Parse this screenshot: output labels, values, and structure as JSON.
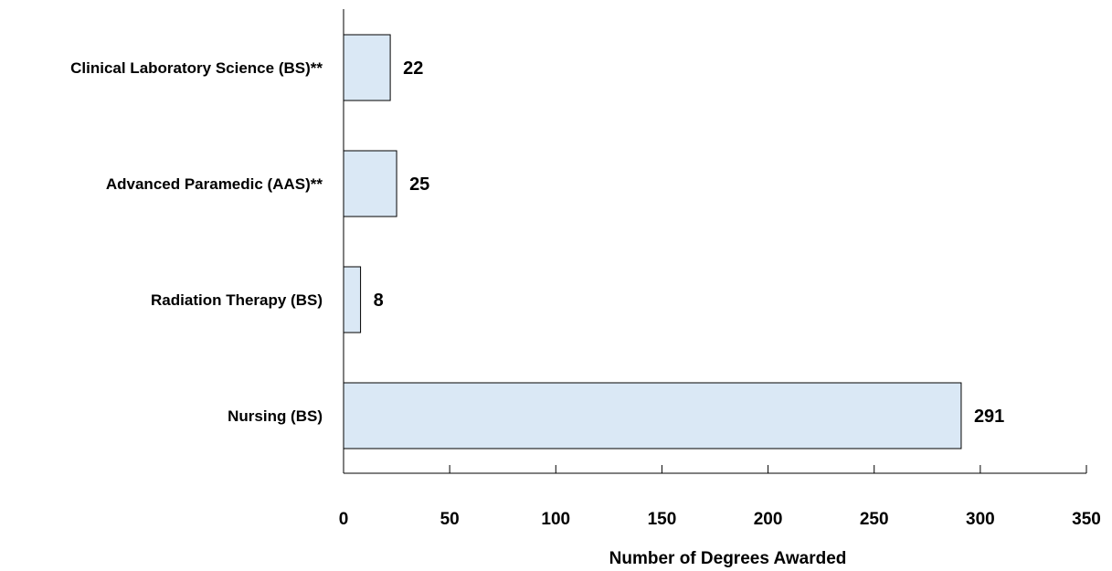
{
  "chart_data": {
    "type": "bar",
    "orientation": "horizontal",
    "categories": [
      "Clinical Laboratory Science (BS)**",
      "Advanced Paramedic (AAS)**",
      "Radiation Therapy (BS)",
      "Nursing (BS)"
    ],
    "values": [
      22,
      25,
      8,
      291
    ],
    "data_labels": [
      "22",
      "25",
      "8",
      "291"
    ],
    "xlabel": "Number of Degrees Awarded",
    "ylabel": "",
    "xlim": [
      0,
      350
    ],
    "xticks": [
      0,
      50,
      100,
      150,
      200,
      250,
      300,
      350
    ],
    "xtick_labels": [
      "0",
      "50",
      "100",
      "150",
      "200",
      "250",
      "300",
      "350"
    ],
    "grid": false,
    "legend": "none",
    "bar_color": "#DAE8F5",
    "bar_edge_color": "#000000"
  }
}
